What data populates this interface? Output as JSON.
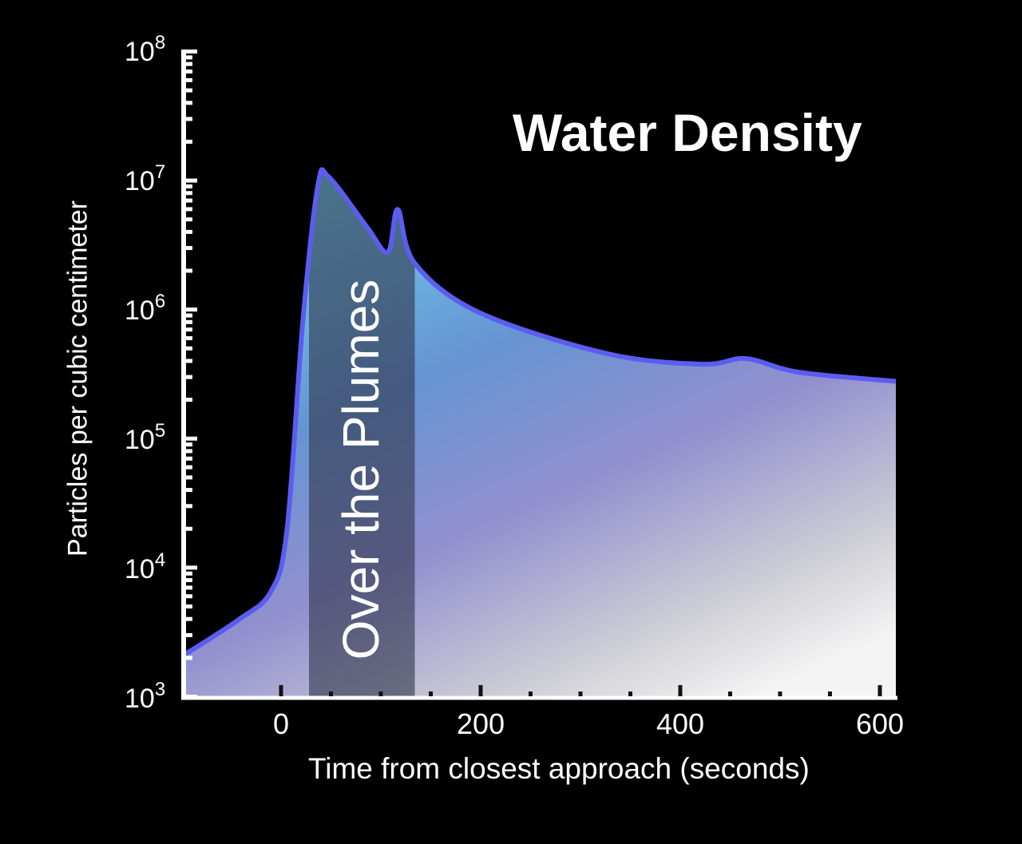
{
  "chart_data": {
    "type": "area",
    "title": "Water Density",
    "xlabel": "Time from closest approach (seconds)",
    "ylabel": "Particles per cubic centimeter",
    "yscale": "log",
    "ylim": [
      1000,
      100000000
    ],
    "xlim": [
      -98,
      616
    ],
    "x_ticks": [
      0,
      200,
      400,
      600
    ],
    "y_ticks": [
      "10^3",
      "10^4",
      "10^5",
      "10^6",
      "10^7",
      "10^8"
    ],
    "grid": false,
    "annotations": [
      {
        "text": "Over the Plumes",
        "type": "shaded-band",
        "x_range": [
          28,
          134
        ]
      }
    ],
    "series": [
      {
        "name": "Water Density",
        "x": [
          -98,
          -42,
          -10,
          6,
          22,
          37,
          48,
          86,
          107,
          117,
          134,
          198,
          326,
          422,
          466,
          518,
          616
        ],
        "values": [
          2100,
          4000,
          6600,
          20000,
          850000,
          9300000,
          10700000,
          4400000,
          2800000,
          6000000,
          2300000,
          960000,
          460000,
          380000,
          420000,
          330000,
          280000
        ]
      }
    ]
  },
  "labels": {
    "title": "Water Density",
    "xlabel": "Time from closest approach (seconds)",
    "ylabel": "Particles per cubic centimeter",
    "band": "Over the Plumes",
    "x_ticks": [
      "0",
      "200",
      "400",
      "600"
    ],
    "y_ticks": [
      {
        "base": "10",
        "exp": "8"
      },
      {
        "base": "10",
        "exp": "7"
      },
      {
        "base": "10",
        "exp": "6"
      },
      {
        "base": "10",
        "exp": "5"
      },
      {
        "base": "10",
        "exp": "4"
      },
      {
        "base": "10",
        "exp": "3"
      }
    ]
  },
  "colors": {
    "background": "#000000",
    "line": "#5b5cf0",
    "fill_top": "#6fcbea",
    "fill_mid": "#9a8fd0",
    "fill_bottom": "#f2f2f2",
    "band": "#3a3a48"
  }
}
